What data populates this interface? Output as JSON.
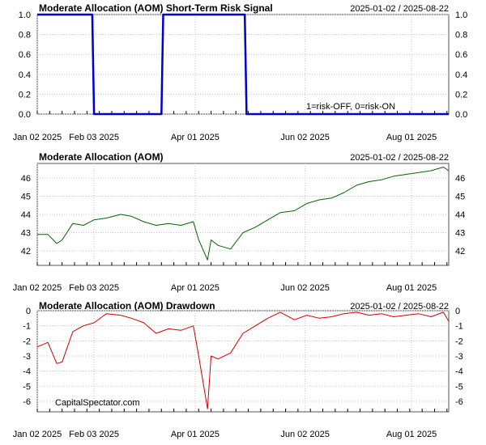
{
  "x_labels": [
    "Jan 02 2025",
    "Feb 03 2025",
    "Apr 01 2025",
    "Jun 02 2025",
    "Aug 01 2025"
  ],
  "watermark": "CapitalSpectator.com",
  "colors": {
    "signal": "#0000cc",
    "price": "#006400",
    "drawdown": "#cc0000",
    "grid": "#c8c8c8"
  },
  "chart_data": [
    {
      "type": "line",
      "title": "Moderate Allocation (AOM) Short-Term Risk Signal",
      "date_range": "2025-01-02 / 2025-08-22",
      "annotation": "1=risk-OFF, 0=risk-ON",
      "ylim": [
        0,
        1
      ],
      "y_ticks": [
        "0.0",
        "0.2",
        "0.4",
        "0.6",
        "0.8",
        "1.0"
      ],
      "y_tick_values": [
        0,
        0.2,
        0.4,
        0.6,
        0.8,
        1.0
      ],
      "series": [
        {
          "x": [
            "2025-01-02",
            "2025-02-02",
            "2025-02-03",
            "2025-03-13",
            "2025-03-14",
            "2025-04-29",
            "2025-04-30",
            "2025-08-22"
          ],
          "values": [
            1,
            1,
            0,
            0,
            1,
            1,
            0,
            0
          ]
        }
      ]
    },
    {
      "type": "line",
      "title": "Moderate Allocation (AOM)",
      "date_range": "2025-01-02 / 2025-08-22",
      "ylim": [
        41.2,
        46.8
      ],
      "y_ticks": [
        "42",
        "43",
        "44",
        "45",
        "46"
      ],
      "y_tick_values": [
        42,
        43,
        44,
        45,
        46
      ],
      "series": [
        {
          "x": [
            "2025-01-02",
            "2025-01-08",
            "2025-01-13",
            "2025-01-16",
            "2025-01-22",
            "2025-01-28",
            "2025-02-03",
            "2025-02-10",
            "2025-02-18",
            "2025-02-24",
            "2025-03-03",
            "2025-03-10",
            "2025-03-17",
            "2025-03-24",
            "2025-03-31",
            "2025-04-03",
            "2025-04-08",
            "2025-04-10",
            "2025-04-14",
            "2025-04-21",
            "2025-04-28",
            "2025-05-05",
            "2025-05-12",
            "2025-05-19",
            "2025-05-27",
            "2025-06-03",
            "2025-06-10",
            "2025-06-17",
            "2025-06-24",
            "2025-07-01",
            "2025-07-08",
            "2025-07-15",
            "2025-07-22",
            "2025-07-29",
            "2025-08-05",
            "2025-08-12",
            "2025-08-19",
            "2025-08-22"
          ],
          "values": [
            42.9,
            42.9,
            42.4,
            42.6,
            43.5,
            43.4,
            43.7,
            43.8,
            44.0,
            43.9,
            43.6,
            43.4,
            43.5,
            43.4,
            43.6,
            42.6,
            41.5,
            42.6,
            42.3,
            42.1,
            43.0,
            43.3,
            43.7,
            44.1,
            44.2,
            44.6,
            44.8,
            44.9,
            45.2,
            45.6,
            45.8,
            45.9,
            46.1,
            46.2,
            46.3,
            46.4,
            46.6,
            46.4
          ]
        }
      ]
    },
    {
      "type": "area",
      "title": "Moderate Allocation (AOM) Drawdown",
      "date_range": "2025-01-02 / 2025-08-22",
      "ylim": [
        -6.7,
        0
      ],
      "y_ticks": [
        "0",
        "-1",
        "-2",
        "-3",
        "-4",
        "-5",
        "-6"
      ],
      "y_tick_values": [
        0,
        -1,
        -2,
        -3,
        -4,
        -5,
        -6
      ],
      "series": [
        {
          "x": [
            "2025-01-02",
            "2025-01-08",
            "2025-01-13",
            "2025-01-16",
            "2025-01-22",
            "2025-01-28",
            "2025-02-03",
            "2025-02-10",
            "2025-02-18",
            "2025-02-24",
            "2025-03-03",
            "2025-03-10",
            "2025-03-17",
            "2025-03-24",
            "2025-03-31",
            "2025-04-03",
            "2025-04-08",
            "2025-04-10",
            "2025-04-14",
            "2025-04-21",
            "2025-04-28",
            "2025-05-05",
            "2025-05-12",
            "2025-05-19",
            "2025-05-27",
            "2025-06-03",
            "2025-06-10",
            "2025-06-17",
            "2025-06-24",
            "2025-07-01",
            "2025-07-08",
            "2025-07-15",
            "2025-07-22",
            "2025-07-29",
            "2025-08-05",
            "2025-08-12",
            "2025-08-19",
            "2025-08-22"
          ],
          "values": [
            -2.4,
            -2.1,
            -3.5,
            -3.4,
            -1.4,
            -1.0,
            -0.8,
            -0.2,
            -0.3,
            -0.5,
            -0.8,
            -1.5,
            -1.2,
            -1.3,
            -1.0,
            -3.0,
            -6.5,
            -3.0,
            -3.2,
            -2.8,
            -1.5,
            -1.0,
            -0.5,
            -0.1,
            -0.6,
            -0.3,
            -0.5,
            -0.4,
            -0.2,
            -0.1,
            -0.3,
            -0.2,
            -0.4,
            -0.3,
            -0.2,
            -0.4,
            -0.1,
            -0.7
          ]
        }
      ]
    }
  ]
}
